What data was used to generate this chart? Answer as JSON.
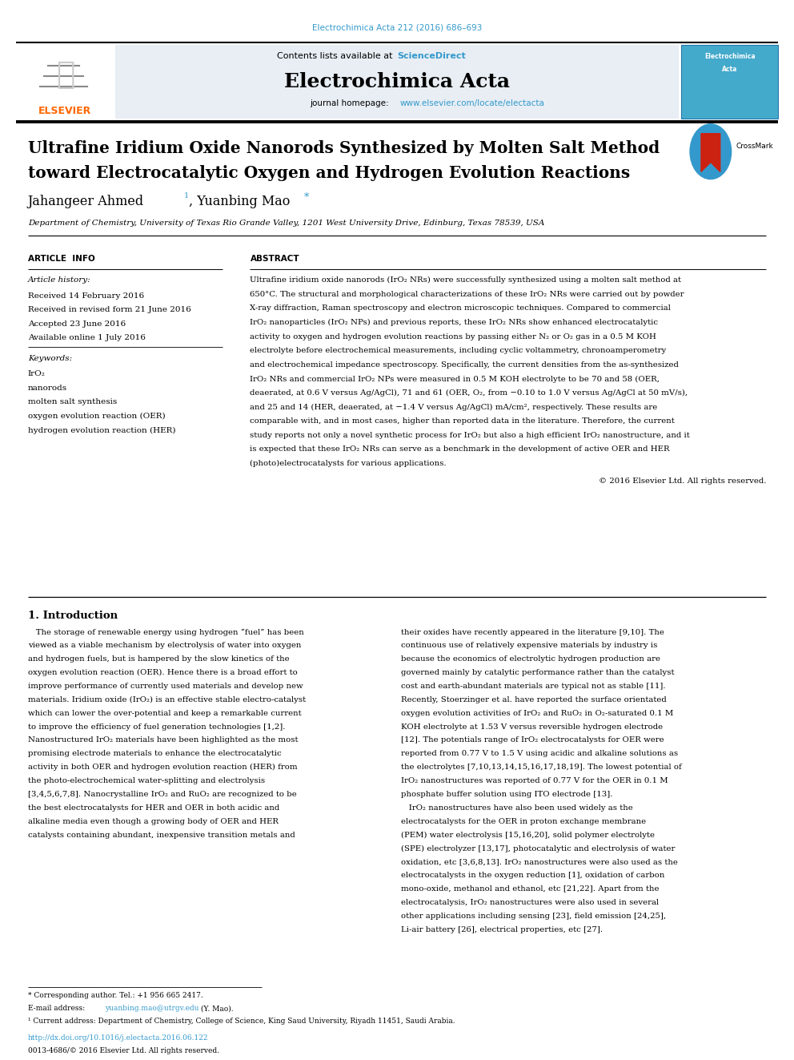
{
  "journal_ref": "Electrochimica Acta 212 (2016) 686–693",
  "journal_name": "Electrochimica Acta",
  "contents_text": "Contents lists available at",
  "science_direct": "ScienceDirect",
  "journal_homepage": "journal homepage:",
  "homepage_url": "www.elsevier.com/locate/electacta",
  "paper_title_line1": "Ultrafine Iridium Oxide Nanorods Synthesized by Molten Salt Method",
  "paper_title_line2": "toward Electrocatalytic Oxygen and Hydrogen Evolution Reactions",
  "affiliation": "Department of Chemistry, University of Texas Rio Grande Valley, 1201 West University Drive, Edinburg, Texas 78539, USA",
  "received": "Received 14 February 2016",
  "received_revised": "Received in revised form 21 June 2016",
  "accepted": "Accepted 23 June 2016",
  "available": "Available online 1 July 2016",
  "keywords": [
    "IrO₂",
    "nanorods",
    "molten salt synthesis",
    "oxygen evolution reaction (OER)",
    "hydrogen evolution reaction (HER)"
  ],
  "abstract_lines": [
    "Ultrafine iridium oxide nanorods (IrO₂ NRs) were successfully synthesized using a molten salt method at",
    "650°C. The structural and morphological characterizations of these IrO₂ NRs were carried out by powder",
    "X-ray diffraction, Raman spectroscopy and electron microscopic techniques. Compared to commercial",
    "IrO₂ nanoparticles (IrO₂ NPs) and previous reports, these IrO₂ NRs show enhanced electrocatalytic",
    "activity to oxygen and hydrogen evolution reactions by passing either N₂ or O₂ gas in a 0.5 M KOH",
    "electrolyte before electrochemical measurements, including cyclic voltammetry, chronoamperometry",
    "and electrochemical impedance spectroscopy. Specifically, the current densities from the as-synthesized",
    "IrO₂ NRs and commercial IrO₂ NPs were measured in 0.5 M KOH electrolyte to be 70 and 58 (OER,",
    "deaerated, at 0.6 V versus Ag/AgCl), 71 and 61 (OER, O₂, from −0.10 to 1.0 V versus Ag/AgCl at 50 mV/s),",
    "and 25 and 14 (HER, deaerated, at −1.4 V versus Ag/AgCl) mA/cm², respectively. These results are",
    "comparable with, and in most cases, higher than reported data in the literature. Therefore, the current",
    "study reports not only a novel synthetic process for IrO₂ but also a high efficient IrO₂ nanostructure, and it",
    "is expected that these IrO₂ NRs can serve as a benchmark in the development of active OER and HER",
    "(photo)electrocatalysts for various applications."
  ],
  "copyright": "© 2016 Elsevier Ltd. All rights reserved.",
  "intro_col1_lines": [
    "   The storage of renewable energy using hydrogen “fuel” has been",
    "viewed as a viable mechanism by electrolysis of water into oxygen",
    "and hydrogen fuels, but is hampered by the slow kinetics of the",
    "oxygen evolution reaction (OER). Hence there is a broad effort to",
    "improve performance of currently used materials and develop new",
    "materials. Iridium oxide (IrO₂) is an effective stable electro-catalyst",
    "which can lower the over-potential and keep a remarkable current",
    "to improve the efficiency of fuel generation technologies [1,2].",
    "Nanostructured IrO₂ materials have been highlighted as the most",
    "promising electrode materials to enhance the electrocatalytic",
    "activity in both OER and hydrogen evolution reaction (HER) from",
    "the photo-electrochemical water-splitting and electrolysis",
    "[3,4,5,6,7,8]. Nanocrystalline IrO₂ and RuO₂ are recognized to be",
    "the best electrocatalysts for HER and OER in both acidic and",
    "alkaline media even though a growing body of OER and HER",
    "catalysts containing abundant, inexpensive transition metals and"
  ],
  "intro_col2_lines": [
    "their oxides have recently appeared in the literature [9,10]. The",
    "continuous use of relatively expensive materials by industry is",
    "because the economics of electrolytic hydrogen production are",
    "governed mainly by catalytic performance rather than the catalyst",
    "cost and earth-abundant materials are typical not as stable [11].",
    "Recently, Stoerzinger et al. have reported the surface orientated",
    "oxygen evolution activities of IrO₂ and RuO₂ in O₂-saturated 0.1 M",
    "KOH electrolyte at 1.53 V versus reversible hydrogen electrode",
    "[12]. The potentials range of IrO₂ electrocatalysts for OER were",
    "reported from 0.77 V to 1.5 V using acidic and alkaline solutions as",
    "the electrolytes [7,10,13,14,15,16,17,18,19]. The lowest potential of",
    "IrO₂ nanostructures was reported of 0.77 V for the OER in 0.1 M",
    "phosphate buffer solution using ITO electrode [13].",
    "   IrO₂ nanostructures have also been used widely as the",
    "electrocatalysts for the OER in proton exchange membrane",
    "(PEM) water electrolysis [15,16,20], solid polymer electrolyte",
    "(SPE) electrolyzer [13,17], photocatalytic and electrolysis of water",
    "oxidation, etc [3,6,8,13]. IrO₂ nanostructures were also used as the",
    "electrocatalysts in the oxygen reduction [1], oxidation of carbon",
    "mono-oxide, methanol and ethanol, etc [21,22]. Apart from the",
    "electrocatalysis, IrO₂ nanostructures were also used in several",
    "other applications including sensing [23], field emission [24,25],",
    "Li-air battery [26], electrical properties, etc [27]."
  ],
  "footnote1": "* Corresponding author. Tel.: +1 956 665 2417.",
  "footnote2_pre": "E-mail address: ",
  "footnote2_email": "yuanbing.mao@utrgv.edu",
  "footnote2_post": " (Y. Mao).",
  "footnote3": "¹ Current address: Department of Chemistry, College of Science, King Saud University, Riyadh 11451, Saudi Arabia.",
  "doi_text": "http://dx.doi.org/10.1016/j.electacta.2016.06.122",
  "issn_text": "0013-4686/© 2016 Elsevier Ltd. All rights reserved.",
  "blue_color": "#3399CC",
  "orange_color": "#FF6600",
  "header_bg": "#E8EEF4",
  "cover_bg": "#44AACC"
}
